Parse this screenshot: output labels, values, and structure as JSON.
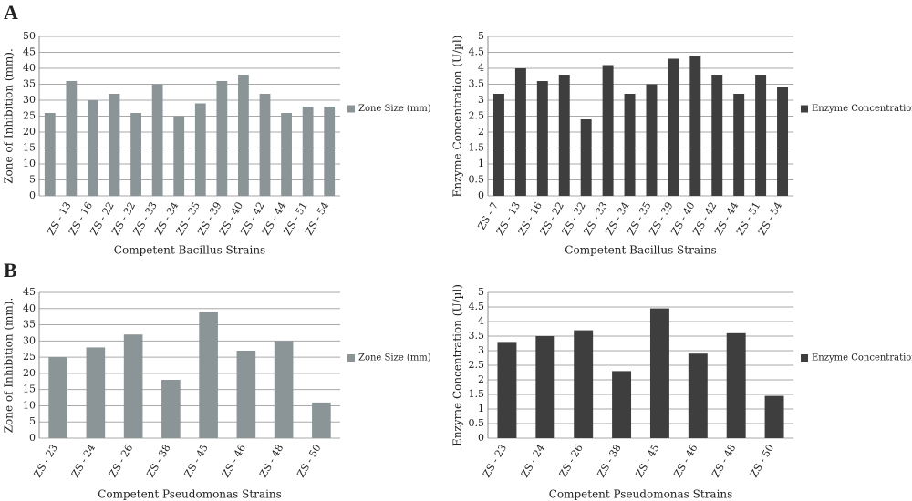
{
  "panel_labels": [
    "A",
    "B"
  ],
  "chart_data": [
    {
      "type": "bar",
      "categories": [
        null,
        "ZS - 13",
        "ZS - 16",
        "ZS - 22",
        "ZS - 32",
        "ZS - 33",
        "ZS - 34",
        "ZS - 35",
        "ZS - 39",
        "ZS - 40",
        "ZS - 42",
        "ZS - 44",
        "ZS - 51",
        "ZS - 54"
      ],
      "series": [
        {
          "name": "Zone Size (mm)",
          "color": "#8b9597",
          "values": [
            26,
            36,
            30,
            32,
            26,
            35,
            25,
            29,
            36,
            38,
            32,
            26,
            28,
            28
          ]
        }
      ],
      "ylim": [
        0,
        50
      ],
      "yticks": [
        0,
        5,
        10,
        15,
        20,
        25,
        30,
        35,
        40,
        45,
        50
      ],
      "grid": true,
      "legend": "right",
      "xlabel": "Competent Bacillus Strains",
      "ylabel": "Zone of Inhibition (mm)."
    },
    {
      "type": "bar",
      "categories": [
        "ZS - 7",
        "ZS - 13",
        "ZS - 16",
        "ZS - 22",
        "ZS - 32",
        "ZS - 33",
        "ZS - 34",
        "ZS - 35",
        "ZS - 39",
        "ZS - 40",
        "ZS - 42",
        "ZS - 44",
        "ZS - 51",
        "ZS - 54"
      ],
      "series": [
        {
          "name": "Enzyme Concentration",
          "color": "#3e3e3e",
          "values": [
            3.2,
            4.0,
            3.6,
            3.8,
            2.4,
            4.1,
            3.2,
            3.5,
            4.3,
            4.4,
            3.8,
            3.2,
            3.8,
            3.4
          ]
        }
      ],
      "ylim": [
        0,
        5
      ],
      "yticks": [
        0,
        0.5,
        1,
        1.5,
        2,
        2.5,
        3,
        3.5,
        4,
        4.5,
        5
      ],
      "grid": true,
      "legend": "right",
      "xlabel": "Competent Bacillus Strains",
      "ylabel": "Enzyme Concentration (U/µl)"
    },
    {
      "type": "bar",
      "categories": [
        "ZS - 23",
        "ZS - 24",
        "ZS - 26",
        "ZS - 38",
        "ZS - 45",
        "ZS - 46",
        "ZS - 48",
        "ZS - 50"
      ],
      "series": [
        {
          "name": "Zone Size (mm)",
          "color": "#8b9597",
          "values": [
            25,
            28,
            32,
            18,
            39,
            27,
            30,
            11
          ]
        }
      ],
      "ylim": [
        0,
        45
      ],
      "yticks": [
        0,
        5,
        10,
        15,
        20,
        25,
        30,
        35,
        40,
        45
      ],
      "grid": true,
      "legend": "right",
      "xlabel": "Competent Pseudomonas Strains",
      "ylabel": "Zone of Inhibition (mm)."
    },
    {
      "type": "bar",
      "categories": [
        "ZS - 23",
        "ZS - 24",
        "ZS - 26",
        "ZS - 38",
        "ZS - 45",
        "ZS - 46",
        "ZS - 48",
        "ZS - 50"
      ],
      "series": [
        {
          "name": "Enzyme Concentration",
          "color": "#3e3e3e",
          "values": [
            3.3,
            3.5,
            3.7,
            2.3,
            4.45,
            2.9,
            3.6,
            1.45
          ]
        }
      ],
      "ylim": [
        0,
        5
      ],
      "yticks": [
        0,
        0.5,
        1,
        1.5,
        2,
        2.5,
        3,
        3.5,
        4,
        4.5,
        5
      ],
      "grid": true,
      "legend": "right",
      "xlabel": "Competent Pseudomonas Strains",
      "ylabel": "Enzyme Concentration (U/µl)"
    }
  ]
}
